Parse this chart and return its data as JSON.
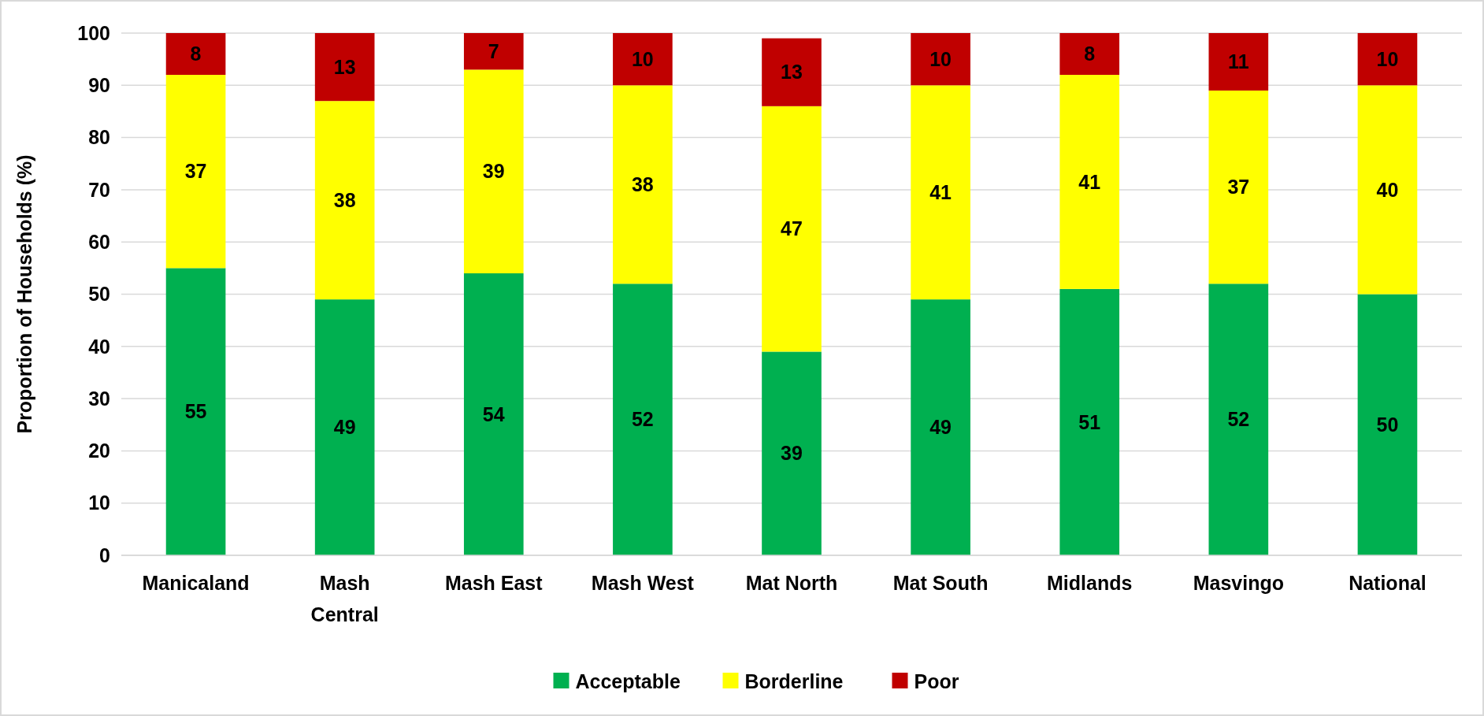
{
  "chart_data": {
    "type": "bar",
    "stacked": true,
    "ylabel": "Proportion of Households (%)",
    "categories": [
      "Manicaland",
      "Mash Central",
      "Mash East",
      "Mash West",
      "Mat North",
      "Mat South",
      "Midlands",
      "Masvingo",
      "National"
    ],
    "series": [
      {
        "name": "Acceptable",
        "color": "#00b050",
        "values": [
          55,
          49,
          54,
          52,
          39,
          49,
          51,
          52,
          50
        ]
      },
      {
        "name": "Borderline",
        "color": "#ffff00",
        "values": [
          37,
          38,
          39,
          38,
          47,
          41,
          41,
          37,
          40
        ]
      },
      {
        "name": "Poor",
        "color": "#c00000",
        "values": [
          8,
          13,
          7,
          10,
          13,
          10,
          8,
          11,
          10
        ]
      }
    ],
    "ylim": [
      0,
      100
    ],
    "yticks": [
      0,
      10,
      20,
      30,
      40,
      50,
      60,
      70,
      80,
      90,
      100
    ],
    "grid": "y",
    "legend": "bottom",
    "data_labels": true
  }
}
